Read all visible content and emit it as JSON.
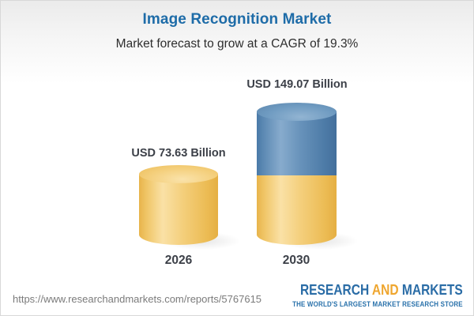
{
  "chart_data": {
    "type": "bar",
    "bar_style": "3d-cylinder",
    "title": "Image Recognition Market",
    "subtitle": "Market forecast to grow at a CAGR of 19.3%",
    "unit": "USD Billion",
    "categories": [
      "2026",
      "2030"
    ],
    "values": [
      73.63,
      149.07
    ],
    "value_labels": [
      "USD 73.63 Billion",
      "USD 149.07 Billion"
    ],
    "cagr_percent": 19.3,
    "legend": "none",
    "grid": "off",
    "stack_note": "2030 cylinder drawn as gold base segment (equal to 2026 value) with blue growth segment on top",
    "colors": {
      "title_text": "#1e6ca8",
      "subtitle_text": "#2e2e2e",
      "label_text": "#3c4048",
      "bar_base_gold": "#f4cf7c",
      "bar_growth_blue": "#6792ba"
    }
  },
  "footer": {
    "url": "https://www.researchandmarkets.com/reports/5767615",
    "logo": {
      "word1": "RESEARCH",
      "word2": "AND",
      "word3": "MARKETS",
      "tagline": "THE WORLD'S LARGEST MARKET RESEARCH STORE",
      "blue": "#2a6ca6",
      "orange": "#efa62f"
    }
  }
}
